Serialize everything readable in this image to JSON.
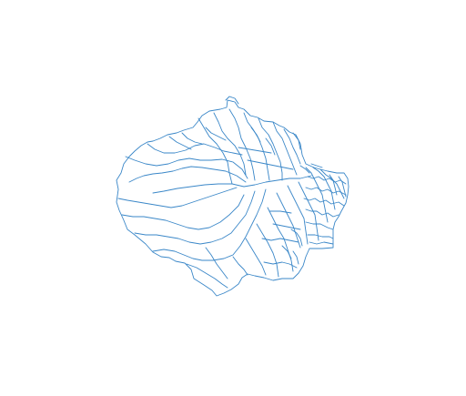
{
  "map": {
    "type": "polygon-boundaries",
    "stroke_color": "#3a87c8",
    "background_color": "#ffffff",
    "title": "",
    "legend": "none"
  }
}
